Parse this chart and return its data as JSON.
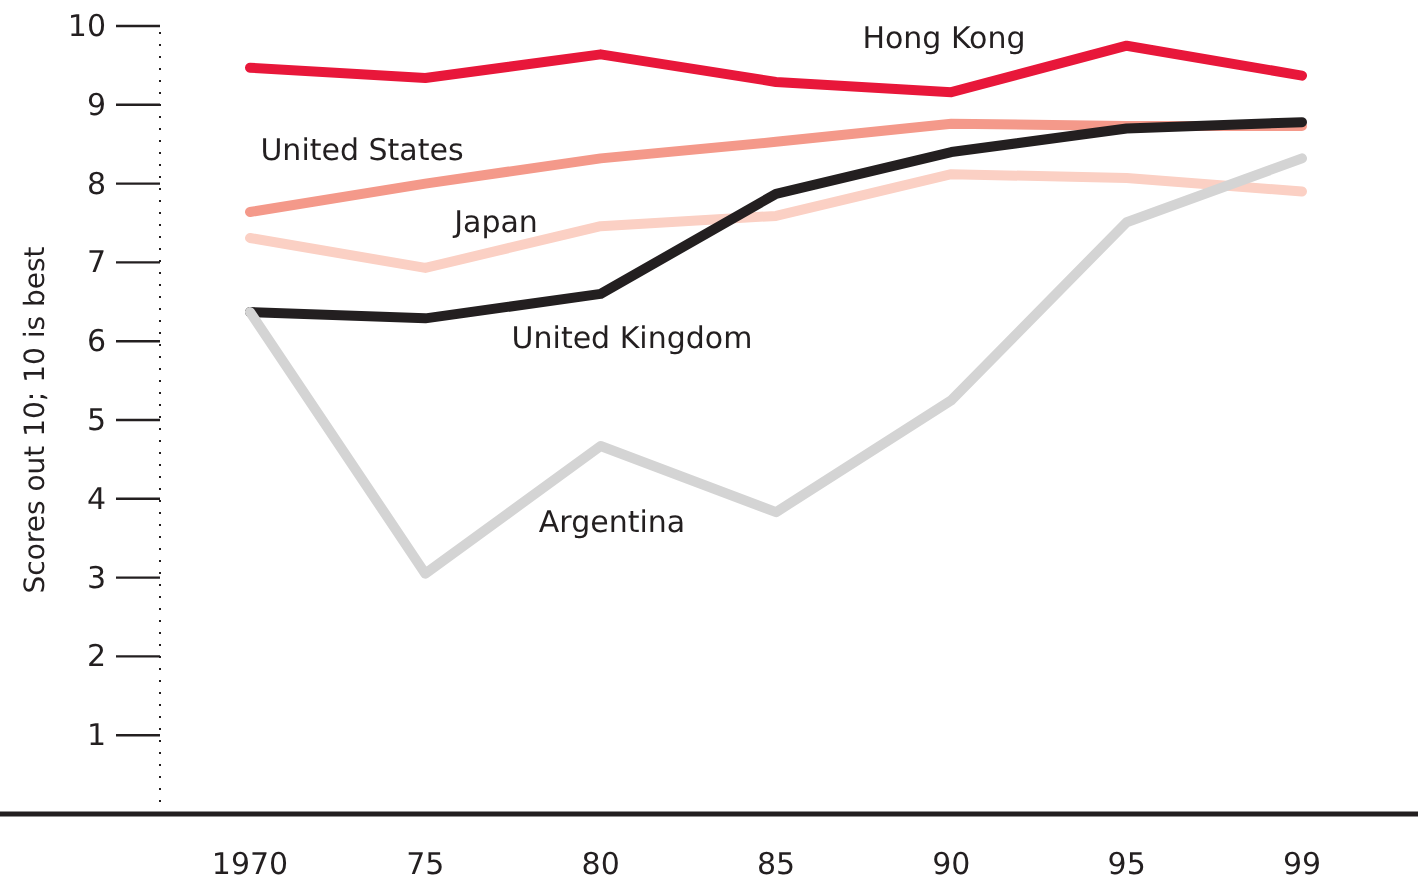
{
  "chart_data": {
    "type": "line",
    "ylabel": "Scores out 10; 10 is best",
    "categories": [
      "1970",
      "75",
      "80",
      "85",
      "90",
      "95",
      "99"
    ],
    "ylim": [
      0,
      10
    ],
    "yticks": [
      1,
      2,
      3,
      4,
      5,
      6,
      7,
      8,
      9,
      10
    ],
    "grid": false,
    "legend": false,
    "marker": "none",
    "line_style": "solid",
    "series": [
      {
        "name": "Hong Kong",
        "color": "#e8173a",
        "values": [
          9.47,
          9.34,
          9.64,
          9.29,
          9.16,
          9.75,
          9.37
        ]
      },
      {
        "name": "United States",
        "color": "#f4998a",
        "values": [
          7.64,
          8.0,
          8.32,
          8.53,
          8.76,
          8.73,
          8.73
        ]
      },
      {
        "name": "Japan",
        "color": "#fbd0c4",
        "values": [
          7.31,
          6.93,
          7.46,
          7.59,
          8.12,
          8.07,
          7.9
        ]
      },
      {
        "name": "United Kingdom",
        "color": "#231f20",
        "values": [
          6.37,
          6.29,
          6.6,
          7.87,
          8.4,
          8.7,
          8.78
        ]
      },
      {
        "name": "Argentina",
        "color": "#d4d4d4",
        "values": [
          6.37,
          3.05,
          4.67,
          3.83,
          5.25,
          7.51,
          8.32
        ]
      }
    ]
  }
}
